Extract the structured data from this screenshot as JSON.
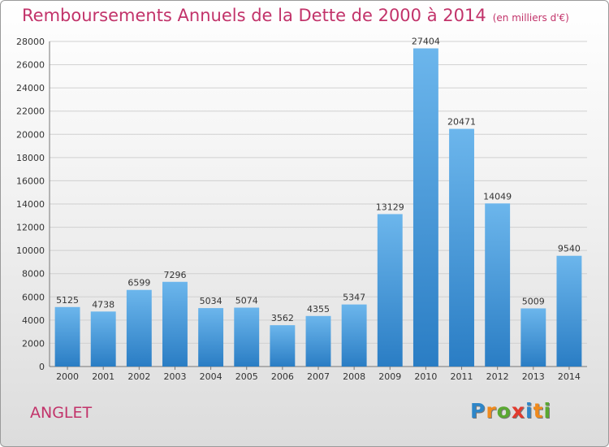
{
  "title": "Remboursements Annuels de la Dette de 2000 à 2014",
  "subtitle": "(en milliers d'€)",
  "location": "ANGLET",
  "logo": {
    "text": "Proxiti",
    "letters": [
      {
        "char": "P",
        "color": "#2e86c8"
      },
      {
        "char": "r",
        "color": "#f08a1c"
      },
      {
        "char": "o",
        "color": "#5aa832"
      },
      {
        "char": "x",
        "color": "#e23b2e"
      },
      {
        "char": "i",
        "color": "#2e86c8"
      },
      {
        "char": "t",
        "color": "#f08a1c"
      },
      {
        "char": "i",
        "color": "#5aa832"
      }
    ]
  },
  "colors": {
    "bar_top": "#6cb6ec",
    "bar_bottom": "#2a7dc4",
    "accent": "#c2336a",
    "grid": "#d0d0d0"
  },
  "chart_data": {
    "type": "bar",
    "title": "Remboursements Annuels de la Dette de 2000 à 2014",
    "subtitle": "(en milliers d'€)",
    "categories": [
      "2000",
      "2001",
      "2002",
      "2003",
      "2004",
      "2005",
      "2006",
      "2007",
      "2008",
      "2009",
      "2010",
      "2011",
      "2012",
      "2013",
      "2014"
    ],
    "values": [
      5125,
      4738,
      6599,
      7296,
      5034,
      5074,
      3562,
      4355,
      5347,
      13129,
      27404,
      20471,
      14049,
      5009,
      9540
    ],
    "ylim": [
      0,
      28000
    ],
    "yticks": [
      0,
      2000,
      4000,
      6000,
      8000,
      10000,
      12000,
      14000,
      16000,
      18000,
      20000,
      22000,
      24000,
      26000,
      28000
    ],
    "grid": true,
    "data_labels": true
  }
}
